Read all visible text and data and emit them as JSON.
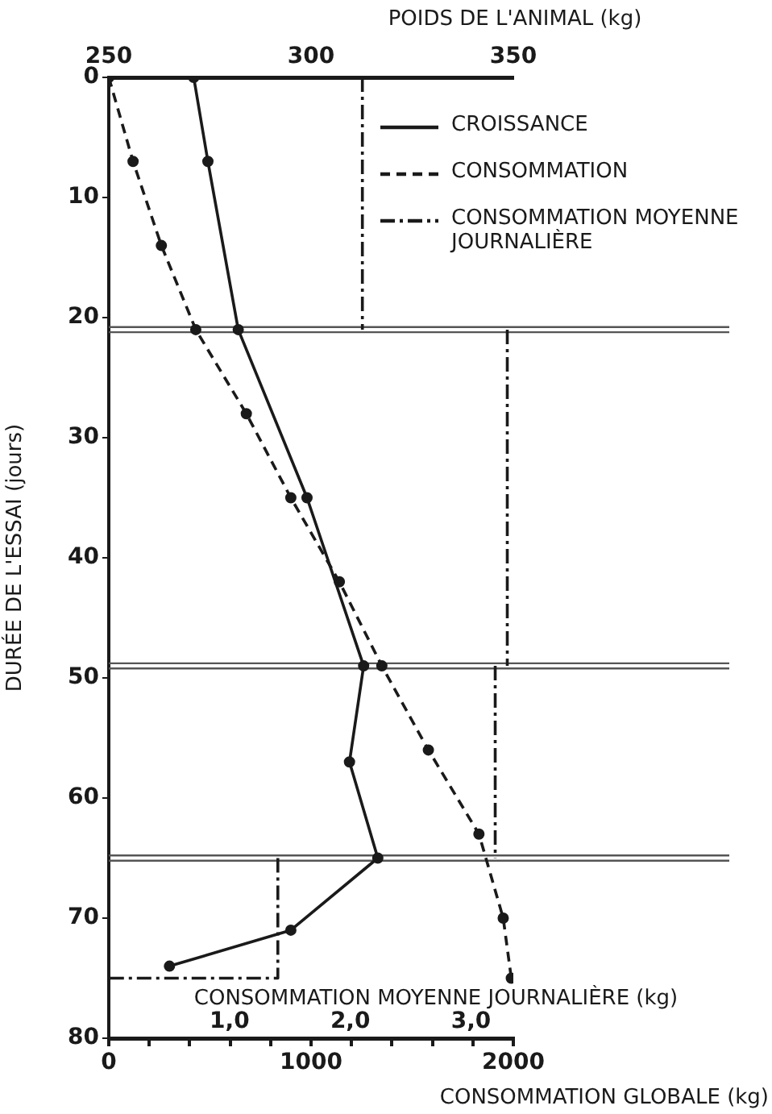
{
  "chart_data": [
    {
      "type": "line",
      "orientation": "horizontal",
      "ylabel": "DURÉE DE L'ESSAI (jours)",
      "xlabel": "CONSOMMATION GLOBALE (kg)",
      "x2label": "POIDS DE L'ANIMAL (kg)",
      "ylim": [
        80,
        0
      ],
      "yticks": [
        0,
        10,
        20,
        30,
        40,
        50,
        60,
        70,
        80
      ],
      "xlim": [
        0,
        2000
      ],
      "xticks": [
        0,
        {
          "value": 200,
          "label": null
        },
        {
          "value": 400,
          "label": null
        },
        {
          "value": 600,
          "label": null
        },
        {
          "value": 800,
          "label": null
        },
        1000,
        {
          "value": 1200,
          "label": null
        },
        {
          "value": 1400,
          "label": null
        },
        {
          "value": 1600,
          "label": null
        },
        {
          "value": 1800,
          "label": null
        },
        2000
      ],
      "x2lim": [
        250,
        350
      ],
      "x2ticks": [
        250,
        300,
        350
      ],
      "series": [
        {
          "name": "CROISSANCE",
          "color": "#1a1a1a",
          "axis": "x2",
          "line_style": "solid",
          "marker": "circle",
          "x": [
            0,
            7,
            21,
            35,
            49,
            57,
            65,
            71,
            74
          ],
          "values": [
            271,
            274.5,
            282,
            299,
            313,
            309.5,
            316.5,
            295,
            265
          ]
        },
        {
          "name": "CONSOMMATION",
          "color": "#1a1a1a",
          "line_style": "dashed",
          "marker": "circle",
          "x": [
            0,
            7,
            14,
            21,
            28,
            35,
            42,
            49,
            56,
            63,
            70,
            75
          ],
          "values": [
            0,
            120,
            260,
            430,
            680,
            900,
            1140,
            1350,
            1580,
            1830,
            1950,
            1990
          ]
        }
      ],
      "ref_lines": [
        {
          "axis": "y",
          "value": 21,
          "color": "#555555"
        },
        {
          "axis": "y",
          "value": 49,
          "color": "#555555"
        },
        {
          "axis": "y",
          "value": 65,
          "color": "#555555"
        }
      ],
      "legend": "top right",
      "grid": false
    },
    {
      "type": "line",
      "orientation": "horizontal",
      "tick_labels": "x",
      "xlabel": "CONSOMMATION MOYENNE JOURNALIÈRE (kg)",
      "ylim": [
        80,
        0
      ],
      "xlim": [
        0,
        3.35
      ],
      "xticks": [
        {
          "value": 1,
          "label": "1,0"
        },
        {
          "value": 2,
          "label": "2,0"
        },
        {
          "value": 3,
          "label": "3,0"
        }
      ],
      "series": [
        {
          "name": "CONSOMMATION MOYENNE JOURNALIÈRE",
          "color": "#1a1a1a",
          "line_style": "dashdot",
          "marker": "none",
          "x": [
            0,
            21
          ],
          "values": [
            2.1,
            2.1
          ]
        },
        {
          "color": "#1a1a1a",
          "line_style": "dashdot",
          "marker": "none",
          "x": [
            21,
            49
          ],
          "values": [
            3.3,
            3.3
          ]
        },
        {
          "color": "#1a1a1a",
          "line_style": "dashdot",
          "marker": "none",
          "x": [
            49,
            65
          ],
          "values": [
            3.2,
            3.2
          ]
        },
        {
          "color": "#1a1a1a",
          "line_style": "dashdot",
          "marker": "none",
          "x": [
            65,
            75,
            75
          ],
          "values": [
            1.4,
            1.4,
            0
          ]
        }
      ],
      "legend": "top right",
      "grid": false
    }
  ]
}
